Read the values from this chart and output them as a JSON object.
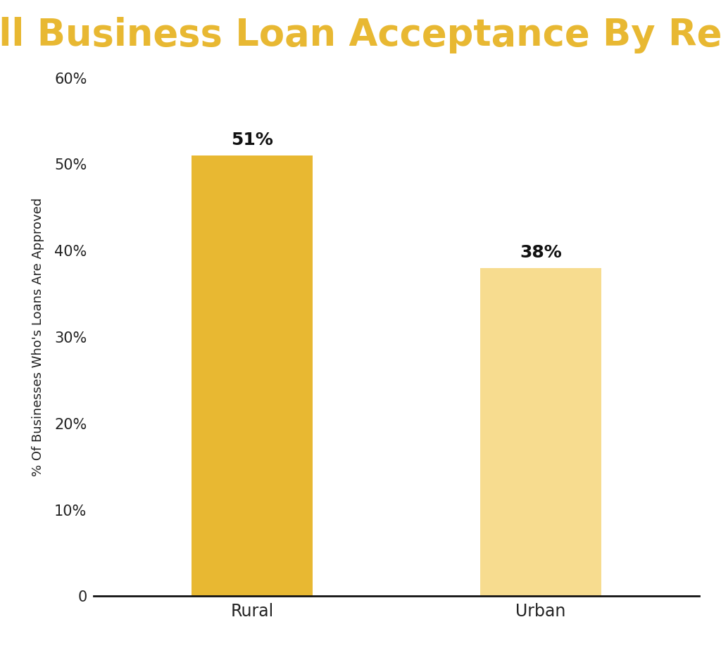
{
  "title": "Small Business Loan Acceptance By Region",
  "title_color": "#E8B832",
  "title_bg_color": "#1c1c1c",
  "categories": [
    "Rural",
    "Urban"
  ],
  "values": [
    51,
    38
  ],
  "bar_colors": [
    "#E8B832",
    "#F7DC8F"
  ],
  "ylabel": "% Of Businesses Who's Loans Are Approved",
  "ylim": [
    0,
    60
  ],
  "yticks": [
    0,
    10,
    20,
    30,
    40,
    50,
    60
  ],
  "ytick_labels": [
    "0",
    "10%",
    "20%",
    "30%",
    "40%",
    "50%",
    "60%"
  ],
  "bar_labels": [
    "51%",
    "38%"
  ],
  "background_color": "#ffffff",
  "axes_bg_color": "#ffffff",
  "tick_fontsize": 15,
  "bar_label_fontsize": 18,
  "ylabel_fontsize": 13,
  "xtick_fontsize": 17,
  "title_fontsize": 38
}
